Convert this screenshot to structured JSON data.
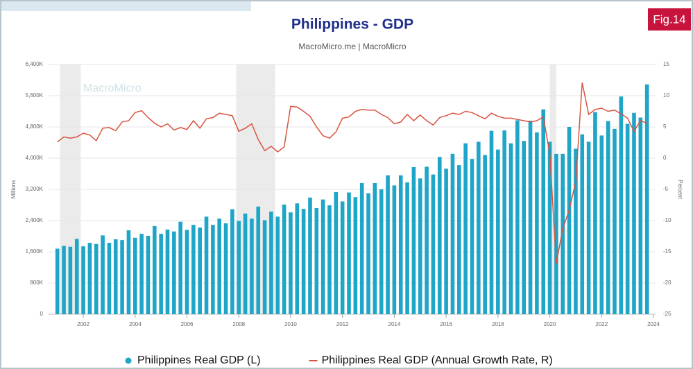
{
  "chart_data": {
    "type": "bar",
    "title": "Philippines - GDP",
    "subtitle": "MacroMicro.me | MacroMicro",
    "badge": "Fig.14",
    "watermark": "MacroMicro",
    "y_label": "Millions",
    "y2_label": "Percent",
    "x": [
      2001,
      2001.25,
      2001.5,
      2001.75,
      2002,
      2002.25,
      2002.5,
      2002.75,
      2003,
      2003.25,
      2003.5,
      2003.75,
      2004,
      2004.25,
      2004.5,
      2004.75,
      2005,
      2005.25,
      2005.5,
      2005.75,
      2006,
      2006.25,
      2006.5,
      2006.75,
      2007,
      2007.25,
      2007.5,
      2007.75,
      2008,
      2008.25,
      2008.5,
      2008.75,
      2009,
      2009.25,
      2009.5,
      2009.75,
      2010,
      2010.25,
      2010.5,
      2010.75,
      2011,
      2011.25,
      2011.5,
      2011.75,
      2012,
      2012.25,
      2012.5,
      2012.75,
      2013,
      2013.25,
      2013.5,
      2013.75,
      2014,
      2014.25,
      2014.5,
      2014.75,
      2015,
      2015.25,
      2015.5,
      2015.75,
      2016,
      2016.25,
      2016.5,
      2016.75,
      2017,
      2017.25,
      2017.5,
      2017.75,
      2018,
      2018.25,
      2018.5,
      2018.75,
      2019,
      2019.25,
      2019.5,
      2019.75,
      2020,
      2020.25,
      2020.5,
      2020.75,
      2021,
      2021.25,
      2021.5,
      2021.75,
      2022,
      2022.25,
      2022.5,
      2022.75,
      2023,
      2023.25,
      2023.5,
      2023.75
    ],
    "series": [
      {
        "name": "Philippines Real GDP (L)",
        "type": "bar",
        "color": "#1ea5c8",
        "values": [
          1680000,
          1750000,
          1730000,
          1930000,
          1740000,
          1830000,
          1800000,
          2020000,
          1830000,
          1920000,
          1900000,
          2150000,
          1960000,
          2060000,
          2010000,
          2260000,
          2060000,
          2170000,
          2120000,
          2370000,
          2160000,
          2290000,
          2220000,
          2500000,
          2290000,
          2450000,
          2330000,
          2690000,
          2390000,
          2580000,
          2450000,
          2760000,
          2410000,
          2630000,
          2500000,
          2810000,
          2610000,
          2840000,
          2700000,
          2990000,
          2720000,
          2940000,
          2790000,
          3130000,
          2890000,
          3120000,
          3000000,
          3360000,
          3100000,
          3360000,
          3200000,
          3560000,
          3300000,
          3560000,
          3380000,
          3770000,
          3480000,
          3780000,
          3580000,
          4030000,
          3730000,
          4110000,
          3820000,
          4380000,
          3980000,
          4420000,
          4080000,
          4700000,
          4220000,
          4710000,
          4380000,
          4970000,
          4440000,
          4960000,
          4660000,
          5250000,
          4420000,
          4110000,
          4110000,
          4800000,
          4240000,
          4610000,
          4420000,
          5180000,
          4580000,
          4950000,
          4750000,
          5580000,
          4880000,
          5160000,
          5040000,
          5890000
        ]
      },
      {
        "name": "Philippines Real GDP (Annual Growth Rate, R)",
        "type": "line",
        "axis": "y2",
        "color": "#d9533f",
        "values": [
          2.6,
          3.4,
          3.2,
          3.4,
          4.0,
          3.7,
          2.8,
          4.8,
          4.9,
          4.4,
          5.8,
          6.0,
          7.3,
          7.6,
          6.5,
          5.6,
          5.0,
          5.5,
          4.5,
          4.9,
          4.6,
          6.0,
          4.8,
          6.3,
          6.5,
          7.2,
          7.0,
          6.8,
          4.3,
          4.8,
          5.5,
          3.0,
          1.2,
          1.9,
          1.0,
          1.8,
          8.3,
          8.2,
          7.5,
          6.7,
          5.0,
          3.6,
          3.2,
          4.2,
          6.4,
          6.6,
          7.5,
          7.8,
          7.7,
          7.7,
          7.0,
          6.5,
          5.5,
          5.8,
          7.0,
          6.0,
          6.9,
          6.0,
          5.3,
          6.5,
          6.8,
          7.2,
          7.0,
          7.5,
          7.3,
          6.8,
          6.3,
          7.2,
          6.7,
          6.4,
          6.4,
          6.2,
          6.0,
          5.8,
          6.0,
          6.6,
          0.7,
          -16.9,
          -11.3,
          -8.3,
          -3.8,
          12.1,
          7.0,
          7.8,
          8.0,
          7.5,
          7.7,
          7.1,
          6.4,
          4.3,
          6.0,
          5.6
        ]
      }
    ],
    "recession_bands": [
      [
        2001.1,
        2001.9
      ],
      [
        2007.9,
        2009.4
      ],
      [
        2020.0,
        2020.25
      ]
    ],
    "xlim": [
      2000.66,
      2024.08
    ],
    "xticks": [
      2002,
      2004,
      2006,
      2008,
      2010,
      2012,
      2014,
      2016,
      2018,
      2020,
      2022,
      2024
    ],
    "ylim": [
      0,
      6400000
    ],
    "yticks": [
      0,
      {
        "value": 800000,
        "label": "800K"
      },
      {
        "value": 1600000,
        "label": "1,600K"
      },
      {
        "value": 2400000,
        "label": "2,400K"
      },
      {
        "value": 3200000,
        "label": "3,200K"
      },
      {
        "value": 4000000,
        "label": "4,000K"
      },
      {
        "value": 4800000,
        "label": "4,800K"
      },
      {
        "value": 5600000,
        "label": "5,600K"
      },
      {
        "value": 6400000,
        "label": "6,400K"
      }
    ],
    "y2lim": [
      -25,
      15
    ],
    "y2ticks": [
      -25,
      -20,
      -15,
      -10,
      -5,
      0,
      5,
      10,
      15
    ],
    "grid": true,
    "legend": "bottom"
  }
}
